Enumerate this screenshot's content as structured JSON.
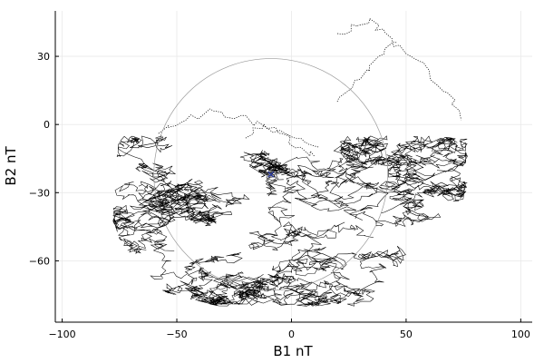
{
  "chart_data": {
    "type": "line",
    "xlabel": "B1 nT",
    "ylabel": "B2 nT",
    "xlim": [
      -103,
      105
    ],
    "ylim": [
      -87,
      50
    ],
    "xticks": [
      -100,
      -50,
      0,
      50,
      100
    ],
    "xtick_labels": [
      "−100",
      "−50",
      "0",
      "50",
      "100"
    ],
    "yticks": [
      -60,
      -30,
      0,
      30
    ],
    "ytick_labels": [
      "−60",
      "−30",
      "0",
      "30"
    ],
    "grid": true,
    "legend": "none",
    "reference_circle": {
      "center": [
        -9,
        -22
      ],
      "radius": 51,
      "color": "#9a9a9a"
    },
    "center_marker": {
      "x": -9,
      "y": -22,
      "color": "#2b3a9a"
    },
    "trace_color": "#000000",
    "hodogram": {
      "description_units": "nT",
      "band_rows": [
        {
          "y": -80,
          "xmin": -32,
          "xmax": 28
        },
        {
          "y": -74,
          "xmin": -55,
          "xmax": 48
        },
        {
          "y": -66,
          "xmin": -66,
          "xmax": 62
        },
        {
          "y": -56,
          "xmin": -74,
          "xmax": 70
        },
        {
          "y": -44,
          "xmin": -78,
          "xmax": 74
        },
        {
          "y": -32,
          "xmin": -79,
          "xmax": 76
        },
        {
          "y": -20,
          "xmin": -78,
          "xmax": 77
        },
        {
          "y": -8,
          "xmin": -76,
          "xmax": 77
        }
      ],
      "dotted_excursions": [
        {
          "x": [
            -58,
            -46,
            -34,
            -22,
            -10,
            2,
            12
          ],
          "y": [
            -4,
            2,
            6,
            4,
            -2,
            -6,
            -10
          ]
        },
        {
          "x": [
            20,
            30,
            38,
            44,
            52,
            60,
            68,
            74
          ],
          "y": [
            10,
            20,
            30,
            36,
            30,
            24,
            14,
            2
          ]
        },
        {
          "x": [
            20,
            26,
            34,
            40,
            46
          ],
          "y": [
            40,
            44,
            46,
            42,
            36
          ]
        },
        {
          "x": [
            -20,
            -12,
            -4,
            4,
            10
          ],
          "y": [
            -6,
            0,
            -4,
            -10,
            -14
          ]
        }
      ]
    }
  }
}
